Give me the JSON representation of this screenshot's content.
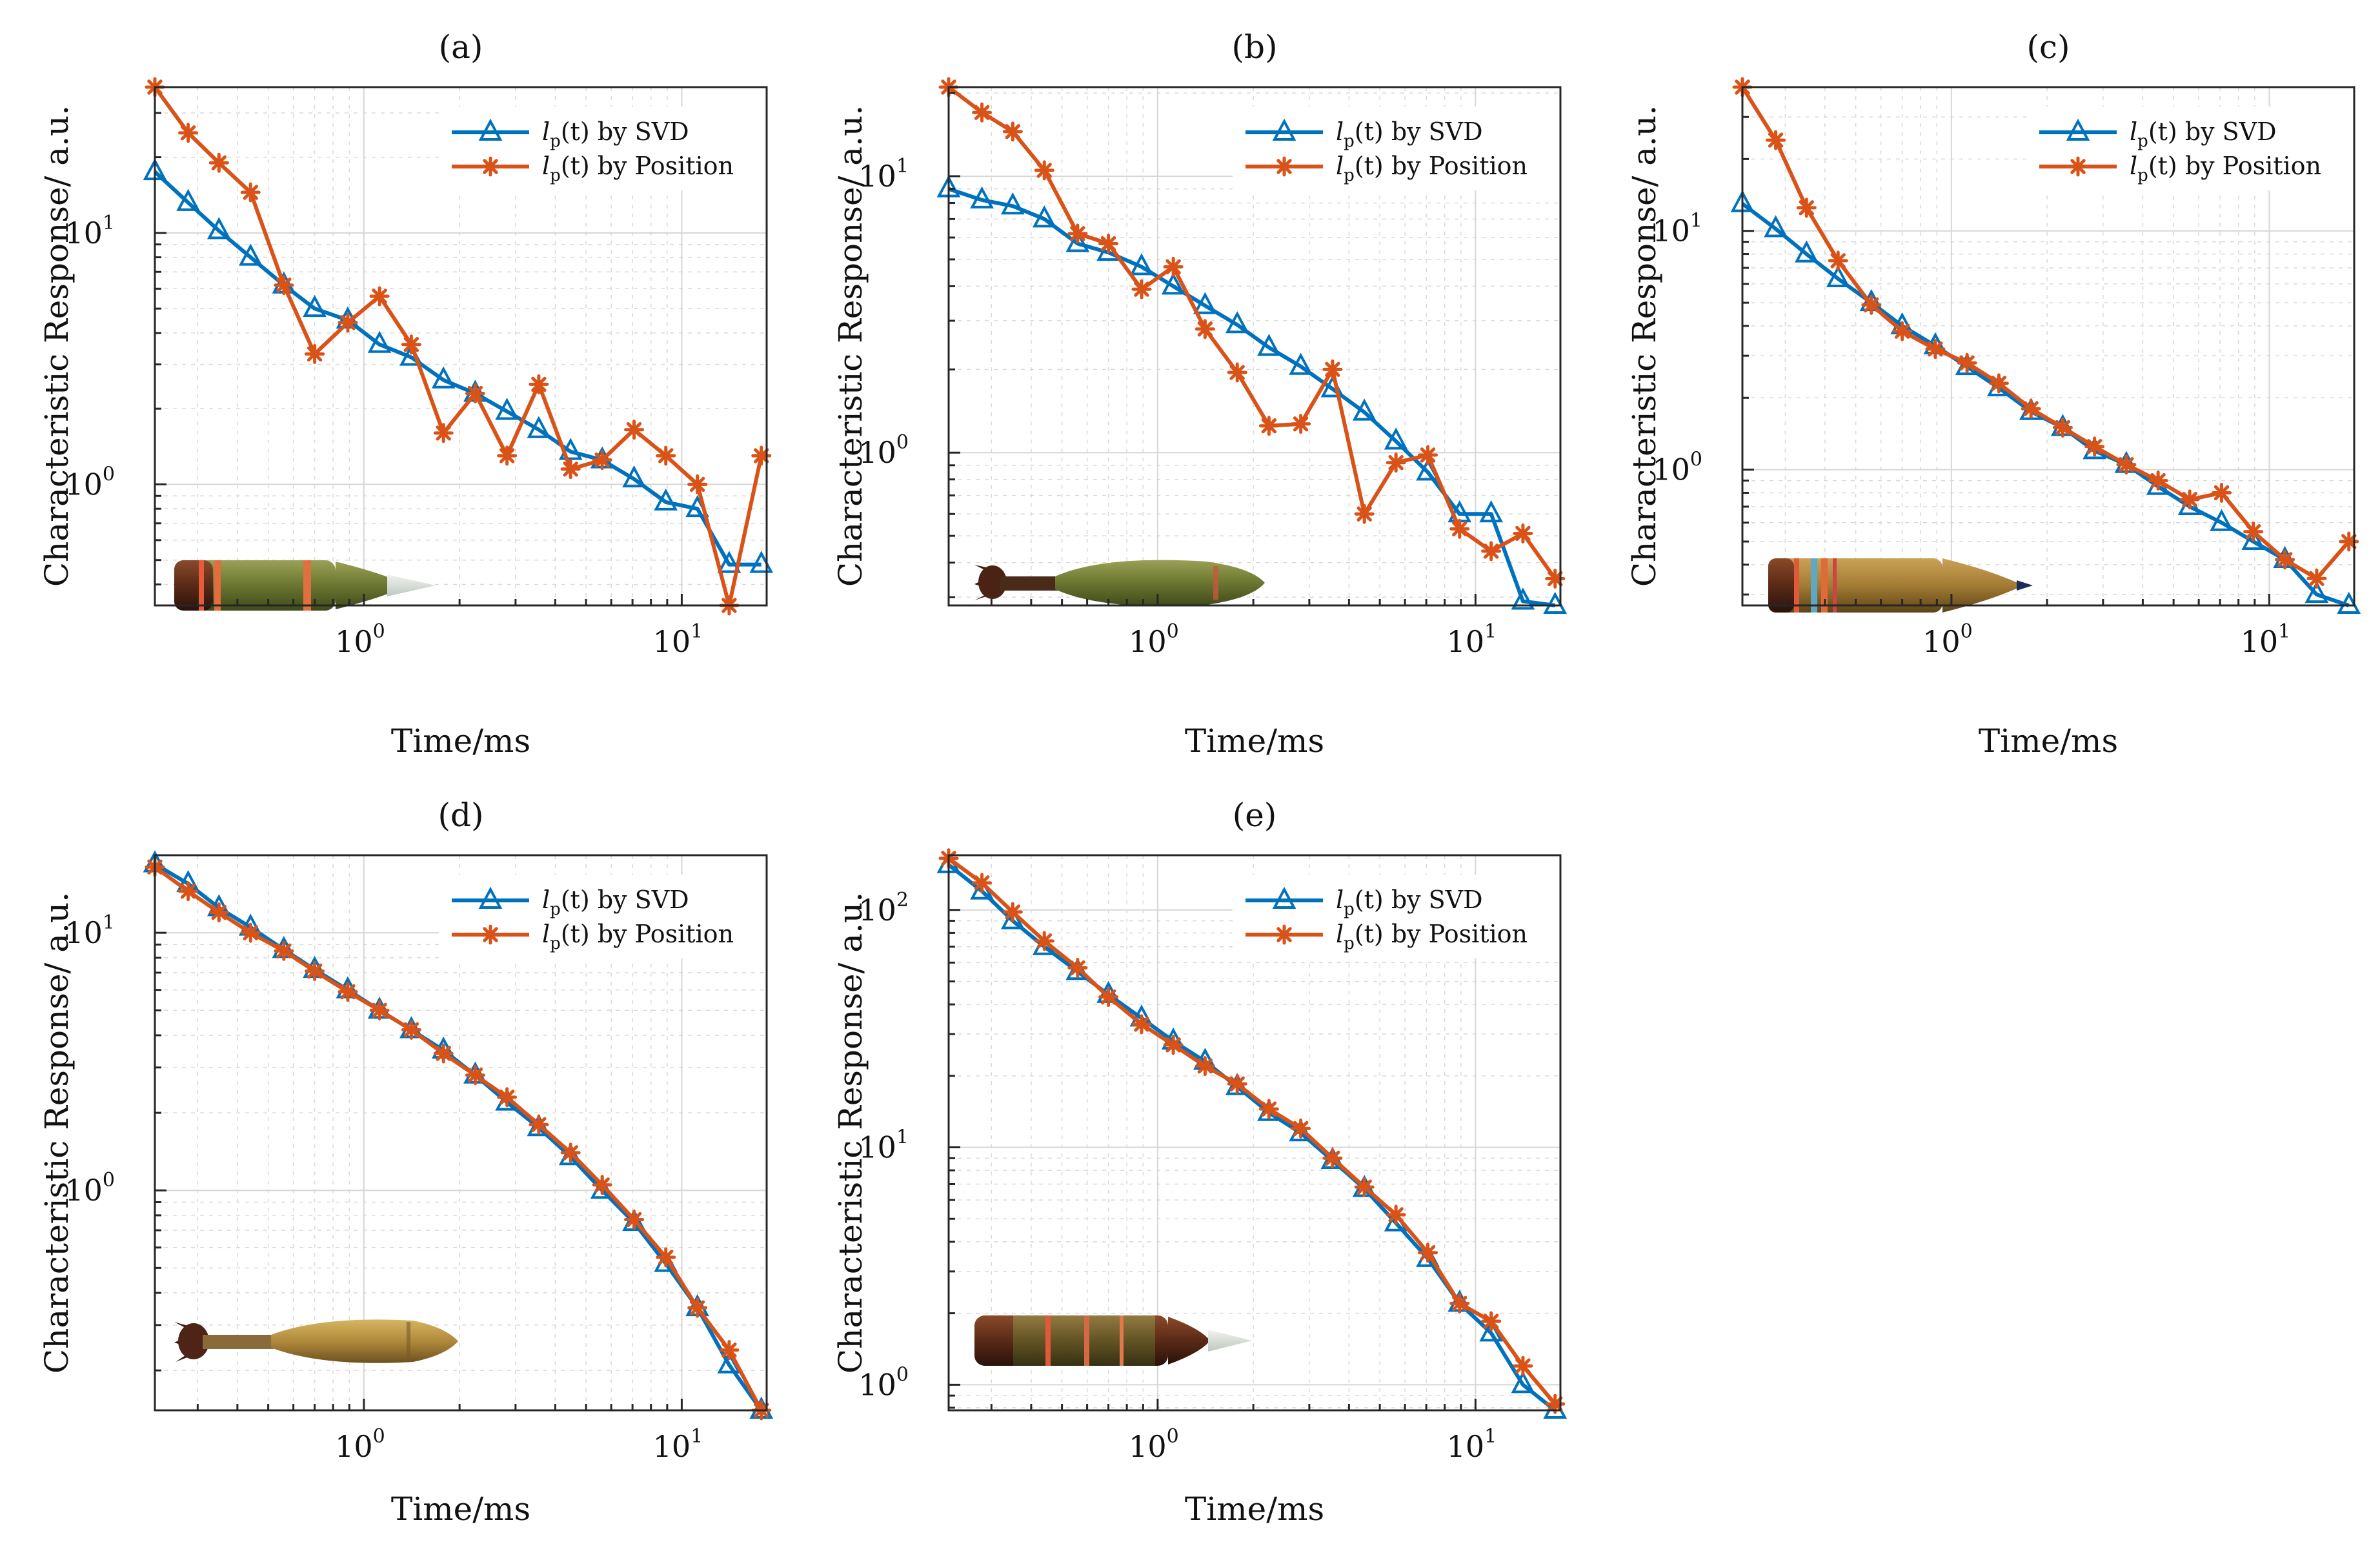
{
  "colors": {
    "svd": "#0072BD",
    "position": "#D95319"
  },
  "legend": {
    "svd_label": {
      "var": "l",
      "sub": "p",
      "arg": "(t)",
      "rest": " by SVD"
    },
    "position_label": {
      "var": "l",
      "sub": "p",
      "arg": "(t)",
      "rest": " by Position"
    }
  },
  "chart_data": [
    {
      "id": "a",
      "type": "line",
      "title": "(a)",
      "xlabel": "Time/ms",
      "ylabel": "Characteristic Response/ a.u.",
      "xscale": "log",
      "yscale": "log",
      "xlim": [
        0.22,
        18.5
      ],
      "ylim": [
        0.33,
        38
      ],
      "xticks": [
        {
          "base": "10",
          "exp": "0",
          "value": 1
        },
        {
          "base": "10",
          "exp": "1",
          "value": 10
        }
      ],
      "yticks": [
        {
          "base": "10",
          "exp": "0",
          "value": 1
        },
        {
          "base": "10",
          "exp": "1",
          "value": 10
        }
      ],
      "grid": true,
      "legend_position": "top-right",
      "inset_image": "mortar-shell-a",
      "x": [
        0.22,
        0.28,
        0.35,
        0.44,
        0.56,
        0.7,
        0.89,
        1.12,
        1.41,
        1.78,
        2.24,
        2.82,
        3.55,
        4.47,
        5.62,
        7.08,
        8.91,
        11.2,
        14.1,
        17.8
      ],
      "series": [
        {
          "name": "lp(t) by SVD",
          "color_key": "svd",
          "marker": "triangle",
          "values": [
            17.5,
            13.2,
            10.2,
            8.0,
            6.2,
            5.0,
            4.5,
            3.6,
            3.2,
            2.6,
            2.3,
            1.95,
            1.65,
            1.35,
            1.25,
            1.05,
            0.85,
            0.8,
            0.48,
            0.48
          ]
        },
        {
          "name": "lp(t) by Position",
          "color_key": "position",
          "marker": "star",
          "values": [
            38,
            25,
            19,
            14.5,
            6.2,
            3.3,
            4.4,
            5.6,
            3.6,
            1.6,
            2.3,
            1.3,
            2.5,
            1.15,
            1.25,
            1.65,
            1.3,
            1.0,
            0.33,
            1.3
          ]
        }
      ]
    },
    {
      "id": "b",
      "type": "line",
      "title": "(b)",
      "xlabel": "Time/ms",
      "ylabel": "Characteristic Response/ a.u.",
      "xscale": "log",
      "yscale": "log",
      "xlim": [
        0.22,
        18.5
      ],
      "ylim": [
        0.28,
        21
      ],
      "xticks": [
        {
          "base": "10",
          "exp": "0",
          "value": 1
        },
        {
          "base": "10",
          "exp": "1",
          "value": 10
        }
      ],
      "yticks": [
        {
          "base": "10",
          "exp": "0",
          "value": 1
        },
        {
          "base": "10",
          "exp": "1",
          "value": 10
        }
      ],
      "grid": true,
      "legend_position": "top-right",
      "inset_image": "mortar-shell-b",
      "x": [
        0.22,
        0.28,
        0.35,
        0.44,
        0.56,
        0.7,
        0.89,
        1.12,
        1.41,
        1.78,
        2.24,
        2.82,
        3.55,
        4.47,
        5.62,
        7.08,
        8.91,
        11.2,
        14.1,
        17.8
      ],
      "series": [
        {
          "name": "lp(t) by SVD",
          "color_key": "svd",
          "marker": "triangle",
          "values": [
            9.0,
            8.2,
            7.8,
            7.0,
            5.7,
            5.3,
            4.7,
            4.0,
            3.4,
            2.9,
            2.4,
            2.05,
            1.7,
            1.4,
            1.1,
            0.85,
            0.6,
            0.6,
            0.29,
            0.28
          ]
        },
        {
          "name": "lp(t) by Position",
          "color_key": "position",
          "marker": "star",
          "values": [
            21,
            17,
            14.5,
            10.5,
            6.2,
            5.7,
            3.9,
            4.7,
            2.8,
            1.95,
            1.25,
            1.27,
            2.0,
            0.6,
            0.92,
            0.98,
            0.53,
            0.44,
            0.51,
            0.35
          ]
        }
      ]
    },
    {
      "id": "c",
      "type": "line",
      "title": "(c)",
      "xlabel": "Time/ms",
      "ylabel": "Characteristic Response/ a.u.",
      "xscale": "log",
      "yscale": "log",
      "xlim": [
        0.22,
        18.5
      ],
      "ylim": [
        0.27,
        40
      ],
      "xticks": [
        {
          "base": "10",
          "exp": "0",
          "value": 1
        },
        {
          "base": "10",
          "exp": "1",
          "value": 10
        }
      ],
      "yticks": [
        {
          "base": "10",
          "exp": "0",
          "value": 1
        },
        {
          "base": "10",
          "exp": "1",
          "value": 10
        }
      ],
      "grid": true,
      "legend_position": "top-right",
      "inset_image": "mortar-shell-c",
      "x": [
        0.22,
        0.28,
        0.35,
        0.44,
        0.56,
        0.7,
        0.89,
        1.12,
        1.41,
        1.78,
        2.24,
        2.82,
        3.55,
        4.47,
        5.62,
        7.08,
        8.91,
        11.2,
        14.1,
        17.8
      ],
      "series": [
        {
          "name": "lp(t) by SVD",
          "color_key": "svd",
          "marker": "triangle",
          "values": [
            13,
            10.2,
            8.0,
            6.3,
            5.0,
            4.0,
            3.3,
            2.7,
            2.2,
            1.75,
            1.5,
            1.2,
            1.05,
            0.85,
            0.7,
            0.6,
            0.5,
            0.42,
            0.3,
            0.27
          ]
        },
        {
          "name": "lp(t) by Position",
          "color_key": "position",
          "marker": "star",
          "values": [
            40,
            24,
            12.5,
            7.5,
            4.9,
            3.8,
            3.2,
            2.8,
            2.3,
            1.8,
            1.5,
            1.25,
            1.05,
            0.9,
            0.75,
            0.8,
            0.55,
            0.42,
            0.35,
            0.5
          ]
        }
      ]
    },
    {
      "id": "d",
      "type": "line",
      "title": "(d)",
      "xlabel": "Time/ms",
      "ylabel": "Characteristic Response/ a.u.",
      "xscale": "log",
      "yscale": "log",
      "xlim": [
        0.22,
        18.5
      ],
      "ylim": [
        0.14,
        20
      ],
      "xticks": [
        {
          "base": "10",
          "exp": "0",
          "value": 1
        },
        {
          "base": "10",
          "exp": "1",
          "value": 10
        }
      ],
      "yticks": [
        {
          "base": "10",
          "exp": "0",
          "value": 1
        },
        {
          "base": "10",
          "exp": "1",
          "value": 10
        }
      ],
      "grid": true,
      "legend_position": "top-right",
      "inset_image": "mortar-shell-d",
      "x": [
        0.22,
        0.28,
        0.35,
        0.44,
        0.56,
        0.7,
        0.89,
        1.12,
        1.41,
        1.78,
        2.24,
        2.82,
        3.55,
        4.47,
        5.62,
        7.08,
        8.91,
        11.2,
        14.1,
        17.8
      ],
      "series": [
        {
          "name": "lp(t) by SVD",
          "color_key": "svd",
          "marker": "triangle",
          "values": [
            18.5,
            15.5,
            12.5,
            10.5,
            8.6,
            7.2,
            6.0,
            5.0,
            4.2,
            3.5,
            2.8,
            2.2,
            1.75,
            1.35,
            1.0,
            0.75,
            0.52,
            0.35,
            0.21,
            0.14
          ]
        },
        {
          "name": "lp(t) by Position",
          "color_key": "position",
          "marker": "star",
          "values": [
            18.0,
            14.5,
            12.0,
            10.0,
            8.5,
            7.1,
            5.9,
            5.0,
            4.2,
            3.4,
            2.8,
            2.3,
            1.8,
            1.4,
            1.05,
            0.77,
            0.55,
            0.35,
            0.24,
            0.14
          ]
        }
      ]
    },
    {
      "id": "e",
      "type": "line",
      "title": "(e)",
      "xlabel": "Time/ms",
      "ylabel": "Characteristic Response/ a.u.",
      "xscale": "log",
      "yscale": "log",
      "xlim": [
        0.22,
        18.5
      ],
      "ylim": [
        0.78,
        170
      ],
      "xticks": [
        {
          "base": "10",
          "exp": "0",
          "value": 1
        },
        {
          "base": "10",
          "exp": "1",
          "value": 10
        }
      ],
      "yticks": [
        {
          "base": "10",
          "exp": "0",
          "value": 1
        },
        {
          "base": "10",
          "exp": "1",
          "value": 10
        },
        {
          "base": "10",
          "exp": "2",
          "value": 100
        }
      ],
      "grid": true,
      "legend_position": "top-right",
      "inset_image": "mortar-shell-e",
      "x": [
        0.22,
        0.28,
        0.35,
        0.44,
        0.56,
        0.7,
        0.89,
        1.12,
        1.41,
        1.78,
        2.24,
        2.82,
        3.55,
        4.47,
        5.62,
        7.08,
        8.91,
        11.2,
        14.1,
        17.8
      ],
      "series": [
        {
          "name": "lp(t) by SVD",
          "color_key": "svd",
          "marker": "triangle",
          "values": [
            155,
            120,
            90,
            70,
            55,
            44,
            35,
            28,
            23,
            18,
            14,
            11.5,
            8.8,
            6.7,
            4.8,
            3.4,
            2.2,
            1.65,
            1.0,
            0.78
          ]
        },
        {
          "name": "lp(t) by Position",
          "color_key": "position",
          "marker": "star",
          "values": [
            165,
            130,
            98,
            74,
            57,
            43,
            33,
            27,
            22,
            18.5,
            14.5,
            12.0,
            9.0,
            6.8,
            5.2,
            3.6,
            2.2,
            1.85,
            1.2,
            0.83
          ]
        }
      ]
    }
  ]
}
